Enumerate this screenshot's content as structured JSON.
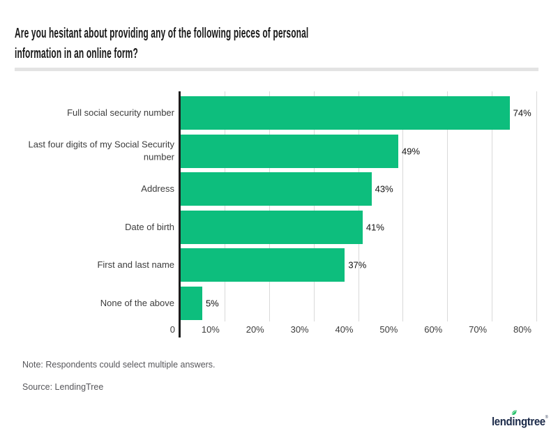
{
  "header": {
    "title_lines": [
      "Are you hesitant about providing any of the following pieces of personal",
      "information in an online form?"
    ]
  },
  "chart_data": {
    "type": "bar",
    "orientation": "horizontal",
    "title": "Are you hesitant about providing any of the following pieces of personal information in an online form?",
    "categories": [
      "Full social security number",
      "Last four digits of my Social Security number",
      "Address",
      "Date of birth",
      "First and last name",
      "None of the above"
    ],
    "values": [
      74,
      49,
      43,
      41,
      37,
      5
    ],
    "value_labels": [
      "74%",
      "49%",
      "43%",
      "41%",
      "37%",
      "5%"
    ],
    "x_axis": {
      "min": 0,
      "max": 80,
      "ticks": [
        0,
        10,
        20,
        30,
        40,
        50,
        60,
        70,
        80
      ],
      "tick_labels": [
        "0",
        "10%",
        "20%",
        "30%",
        "40%",
        "50%",
        "60%",
        "70%",
        "80%"
      ]
    },
    "grid": true,
    "legend": false,
    "bar_color": "#0dbe7d",
    "gridline_color": "#d9d9d9",
    "axis_color": "#1d1d1d"
  },
  "footnotes": {
    "note": "Note: Respondents could select multiple answers.",
    "source": "Source: LendingTree"
  },
  "logo": {
    "text_before": "lend",
    "letter_i": "i",
    "text_after": "ngtree",
    "trademark": "®",
    "navy_color": "#1b2a49",
    "leaf_color": "#25c16a"
  }
}
